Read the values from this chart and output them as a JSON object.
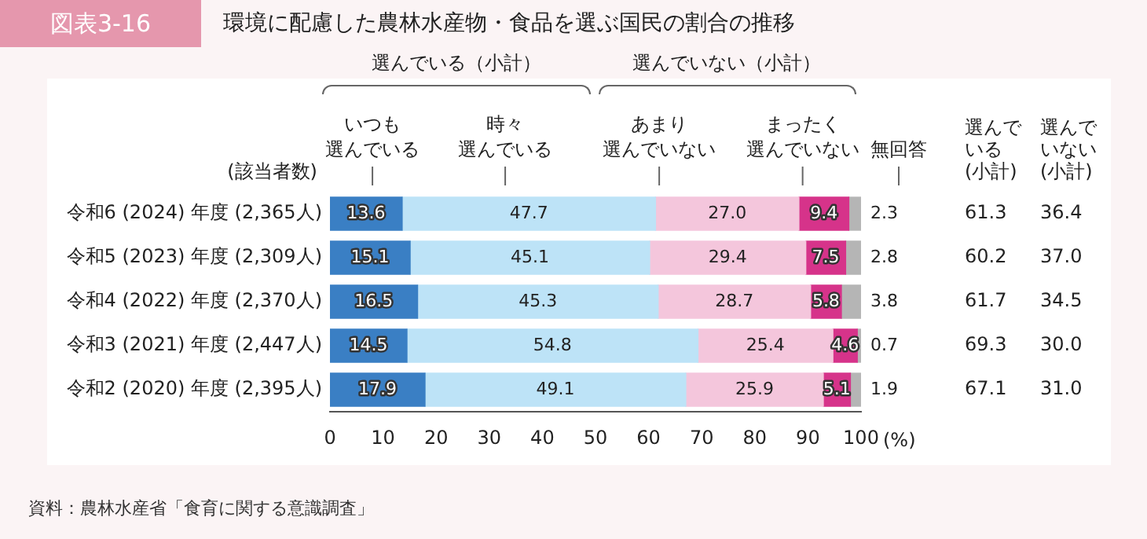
{
  "chart_data": {
    "type": "bar",
    "orientation": "horizontal",
    "stacked": true,
    "title": "環境に配慮した農林水産物・食品を選ぶ国民の割合の推移",
    "subtitle": "図表3-16",
    "xlabel": "(%)",
    "categories": [
      "令和6 (2024) 年度 (2,365人)",
      "令和5 (2023) 年度 (2,309人)",
      "令和4 (2022) 年度 (2,370人)",
      "令和3 (2021) 年度 (2,447人)",
      "令和2 (2020) 年度 (2,395人)"
    ],
    "series": [
      {
        "name": "いつも選んでいる",
        "color": "#3a7fc4",
        "values": [
          13.6,
          15.1,
          16.5,
          14.5,
          17.9
        ],
        "value_labels": [
          "13.6",
          "15.1",
          "16.5",
          "14.5",
          "17.9"
        ]
      },
      {
        "name": "時々選んでいる",
        "color": "#bde3f7",
        "values": [
          47.7,
          45.1,
          45.3,
          54.8,
          49.1
        ],
        "value_labels": [
          "47.7",
          "45.1",
          "45.3",
          "54.8",
          "49.1"
        ]
      },
      {
        "name": "あまり選んでいない",
        "color": "#f4c6dc",
        "values": [
          27.0,
          29.4,
          28.7,
          25.4,
          25.9
        ],
        "value_labels": [
          "27.0",
          "29.4",
          "28.7",
          "25.4",
          "25.9"
        ]
      },
      {
        "name": "まったく選んでいない",
        "color": "#d6338a",
        "values": [
          9.4,
          7.5,
          5.8,
          4.6,
          5.1
        ],
        "value_labels": [
          "9.4",
          "7.5",
          "5.8",
          "4.6",
          "5.1"
        ]
      },
      {
        "name": "無回答",
        "color": "#b5b5b5",
        "values": [
          2.3,
          2.8,
          3.8,
          0.7,
          1.9
        ],
        "value_labels": [
          "2.3",
          "2.8",
          "3.8",
          "0.7",
          "1.9"
        ]
      }
    ],
    "xlim": [
      0,
      100
    ],
    "xticks": [
      0,
      10,
      20,
      30,
      40,
      50,
      60,
      70,
      80,
      90,
      100
    ],
    "grid": false,
    "legend": false,
    "annotations": [
      "選んでいる（小計）",
      "選んでいない（小計）",
      "(該当者数)",
      "選んでいる(小計)",
      "選んでいない(小計)",
      "資料：農林水産省「食育に関する意識調査」",
      "61.3",
      "36.4",
      "60.2",
      "37.0",
      "61.7",
      "34.5",
      "69.3",
      "30.0",
      "67.1",
      "31.0"
    ]
  }
}
